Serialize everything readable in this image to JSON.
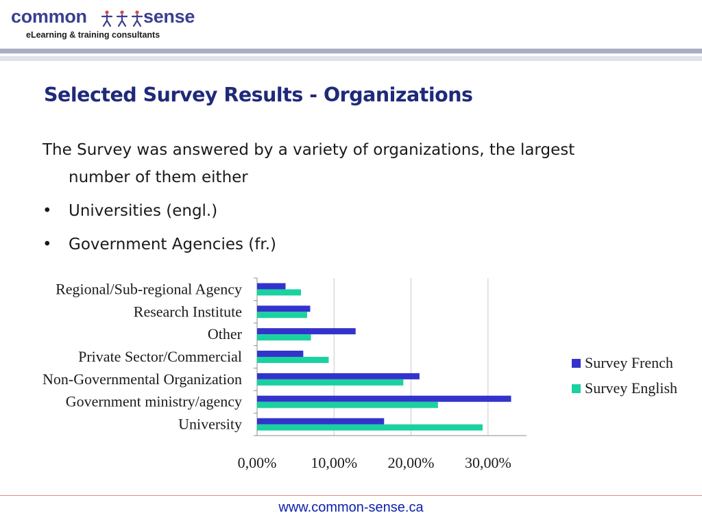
{
  "brand": {
    "name_part1": "common",
    "name_part2": "sense",
    "tagline": "eLearning & training consultants",
    "color": "#3a3f8f"
  },
  "title": "Selected Survey Results - Organizations",
  "intro": "The Survey was answered by a variety of organizations, the largest number of them either",
  "bullets": [
    "Universities (engl.)",
    "Government Agencies (fr.)"
  ],
  "footer": {
    "url": "www.common-sense.ca"
  },
  "chart_data": {
    "type": "bar",
    "orientation": "horizontal",
    "categories": [
      "Regional/Sub-regional Agency",
      "Research Institute",
      "Other",
      "Private Sector/Commercial",
      "Non-Governmental Organization",
      "Government ministry/agency",
      "University"
    ],
    "series": [
      {
        "name": "Survey French",
        "color": "#3333cc",
        "values": [
          3.7,
          6.9,
          12.8,
          6.0,
          21.1,
          33.0,
          16.5
        ]
      },
      {
        "name": "Survey English",
        "color": "#1ad1a0",
        "values": [
          5.7,
          6.5,
          7.0,
          9.3,
          19.0,
          23.5,
          29.3
        ]
      }
    ],
    "xlim": [
      0,
      35
    ],
    "x_ticks": [
      0,
      10,
      20,
      30
    ],
    "x_tick_labels": [
      "0,00%",
      "10,00%",
      "20,00%",
      "30,00%"
    ],
    "grid": true,
    "legend_position": "right"
  }
}
